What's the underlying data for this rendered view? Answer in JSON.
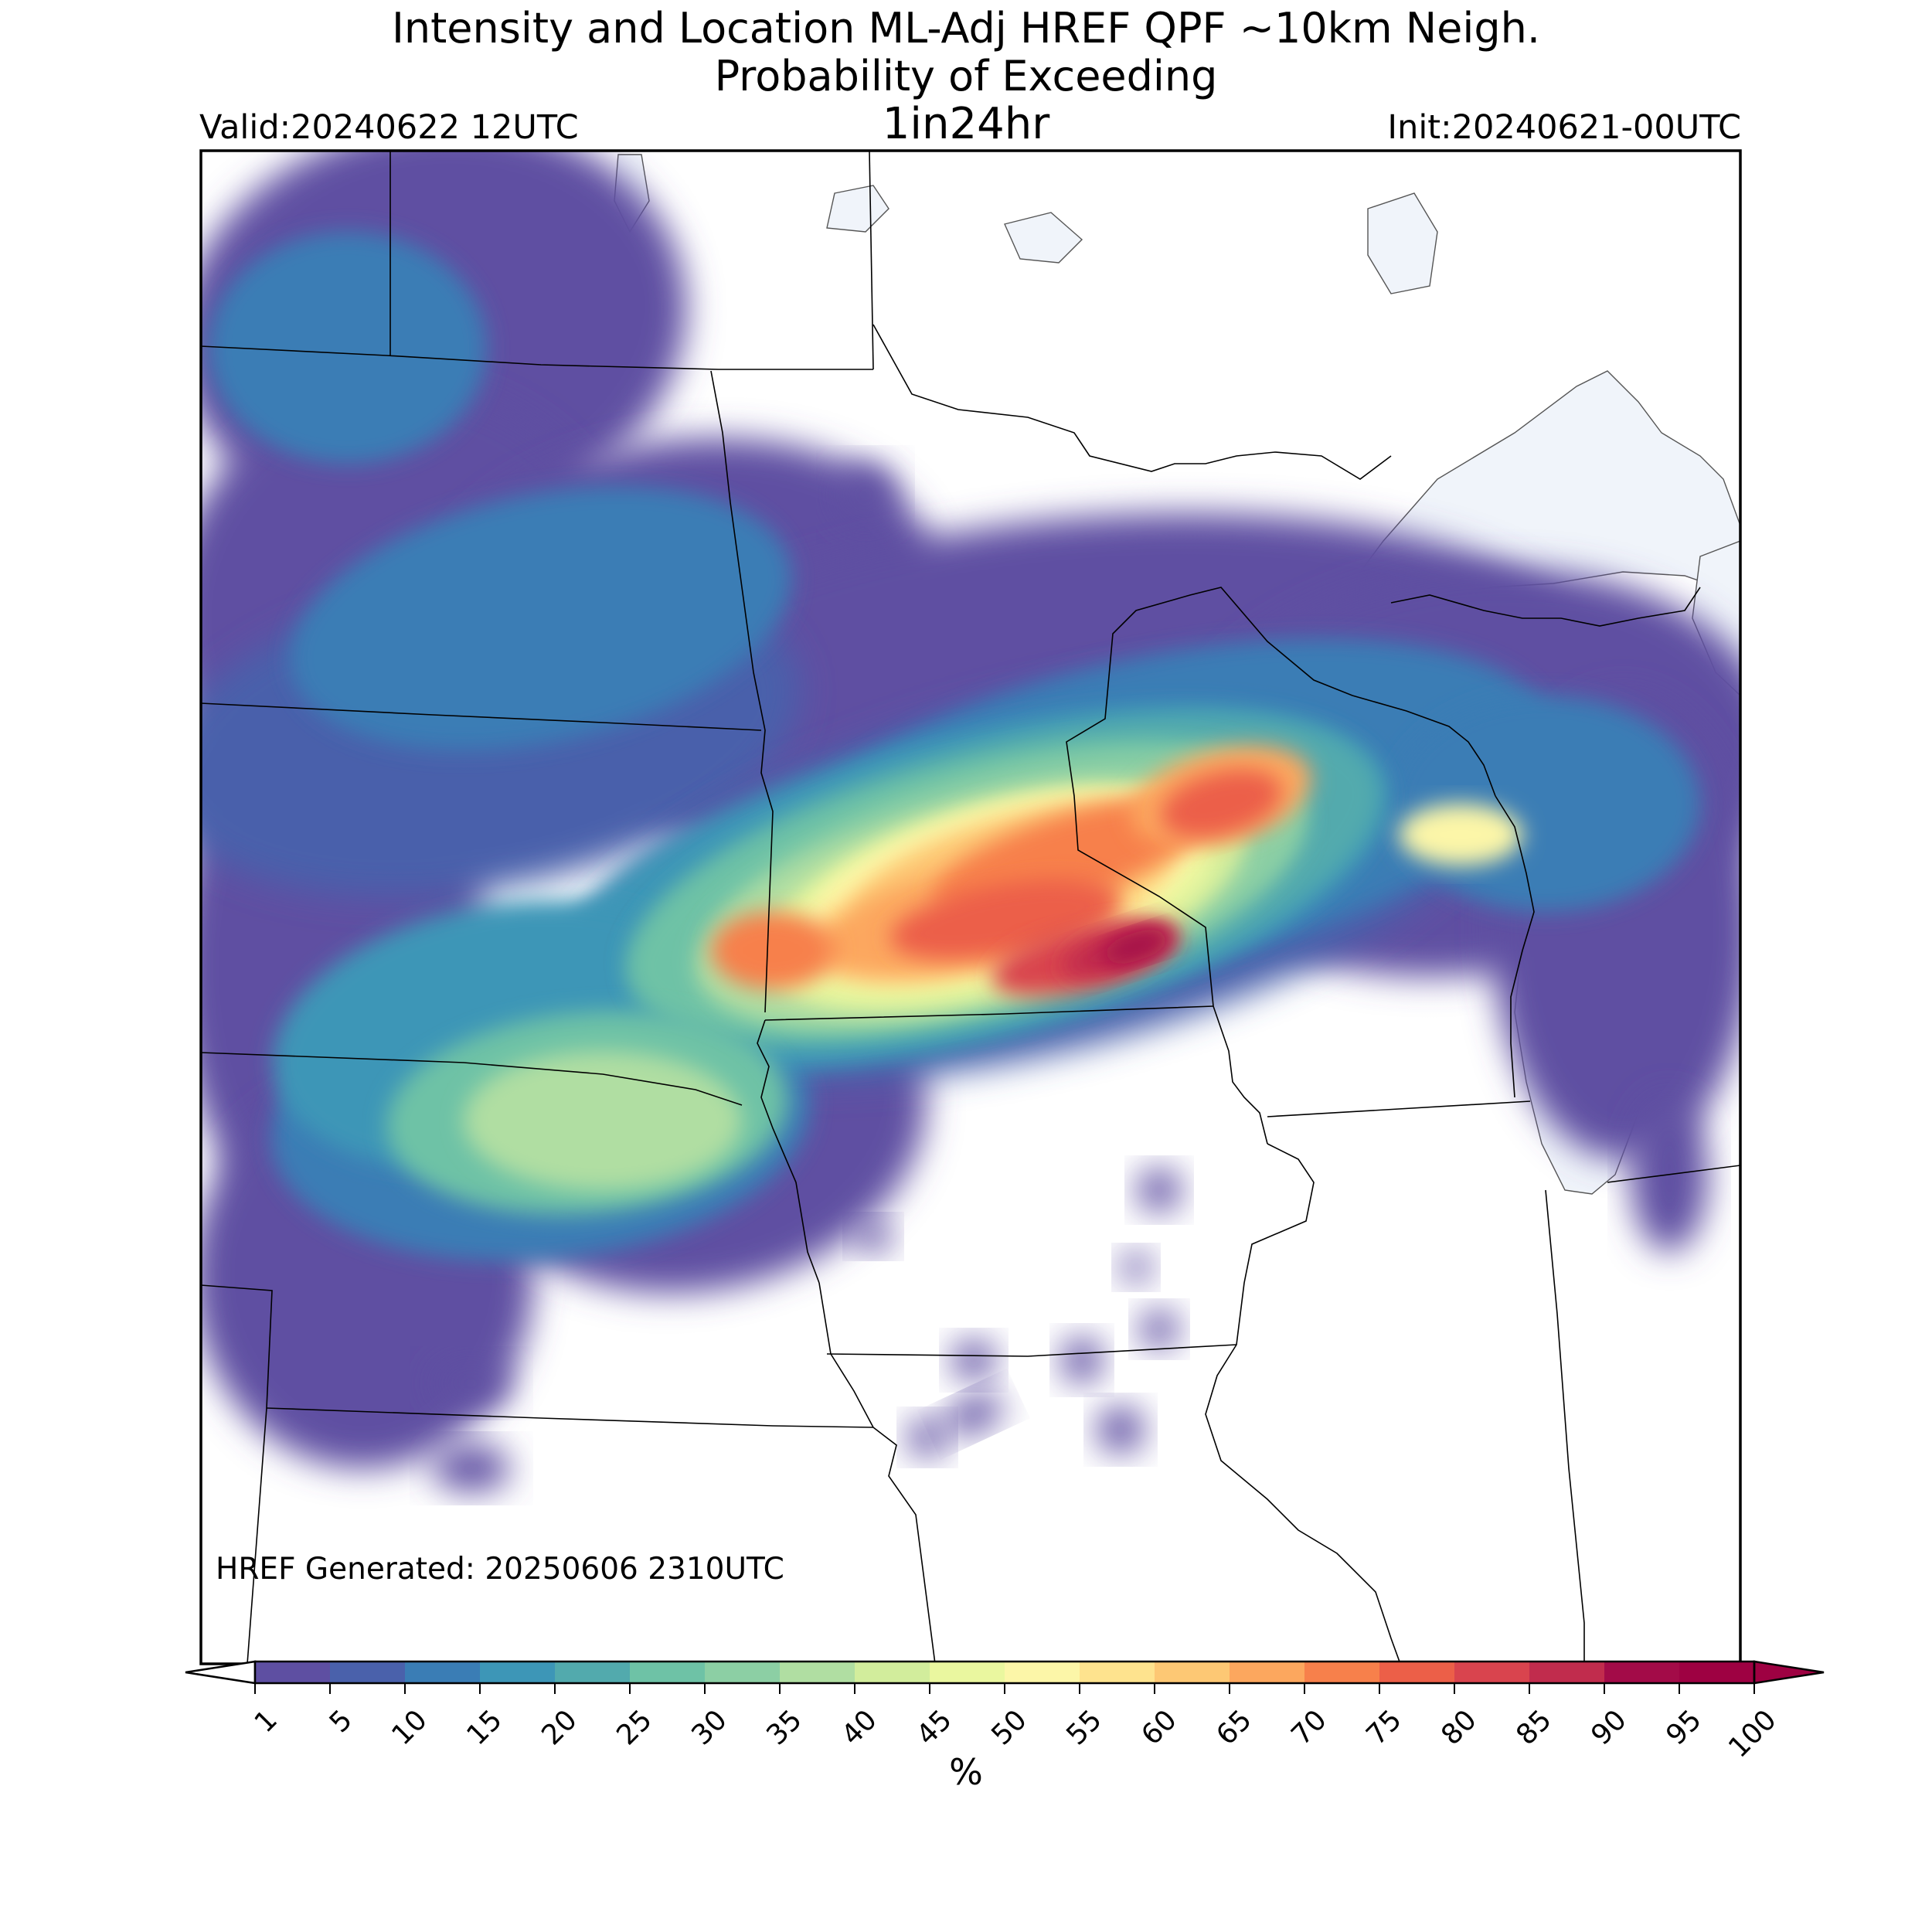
{
  "header": {
    "title_line1": "Intensity and Location ML-Adj HREF QPF ~10km Neigh.",
    "title_line2": "Probability of Exceeding",
    "title_line3": "1in24hr",
    "valid": "Valid:20240622 12UTC",
    "init": "Init:20240621-00UTC"
  },
  "map": {
    "generated": "HREF Generated: 20250606 2310UTC",
    "water_color": "#f0f4fa",
    "border_color": "#000000"
  },
  "chart_data": {
    "type": "heatmap",
    "colorbar": {
      "ticks": [
        "1",
        "5",
        "10",
        "15",
        "20",
        "25",
        "30",
        "35",
        "40",
        "45",
        "50",
        "55",
        "60",
        "65",
        "70",
        "75",
        "80",
        "85",
        "90",
        "95",
        "100"
      ],
      "colors": [
        "#5e4fa2",
        "#4a61ab",
        "#3a7db5",
        "#3d96b7",
        "#52aaad",
        "#6ec2a6",
        "#8ccfa4",
        "#b0dea2",
        "#d2ed9c",
        "#eaf79f",
        "#fcf6a8",
        "#fee38e",
        "#fdc874",
        "#fca75e",
        "#f7804b",
        "#ec5f48",
        "#d9444e",
        "#c12c4d",
        "#a30b48",
        "#9e0142"
      ],
      "label": "%",
      "extend": "both"
    }
  }
}
